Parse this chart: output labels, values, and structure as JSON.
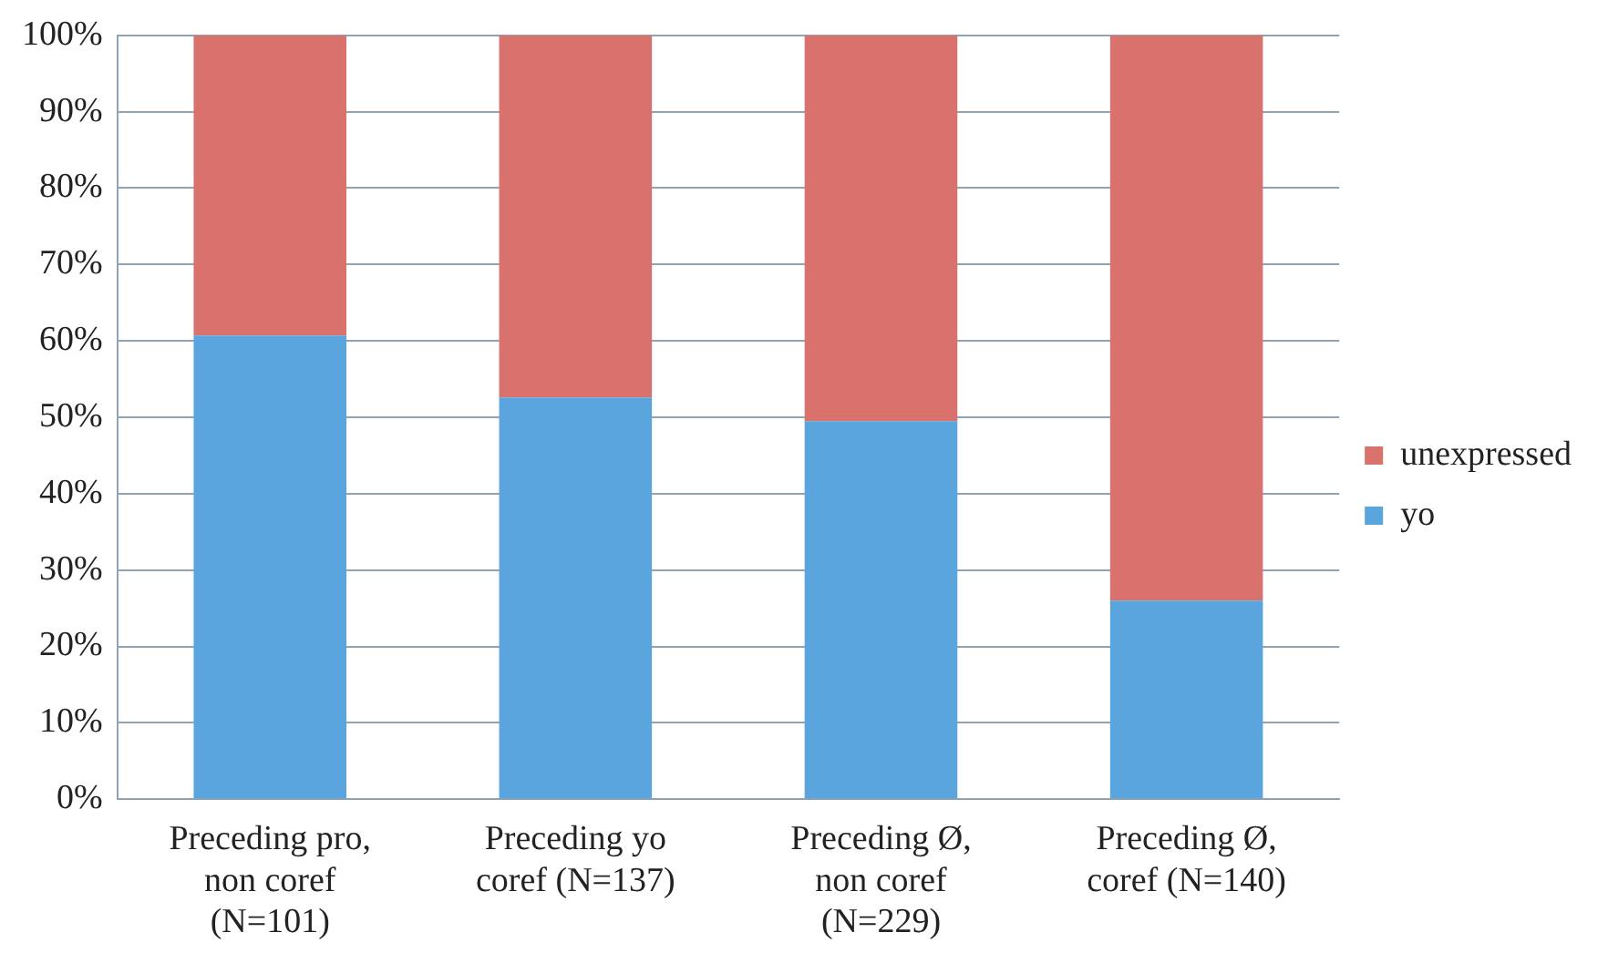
{
  "chart_data": {
    "type": "bar",
    "stacked": true,
    "categories": [
      "Preceding pro,\nnon coref\n(N=101)",
      "Preceding yo\ncoref (N=137)",
      "Preceding Ø,\nnon coref\n(N=229)",
      "Preceding Ø,\ncoref (N=140)"
    ],
    "series": [
      {
        "name": "yo",
        "color": "#5aa5dd",
        "values": [
          60.7,
          52.6,
          49.5,
          26
        ]
      },
      {
        "name": "unexpressed",
        "color": "#d9726c",
        "values": [
          39.3,
          47.4,
          50.5,
          74
        ]
      }
    ],
    "ylim": [
      0,
      100
    ],
    "yticks": [
      {
        "value": 0,
        "label": "0%"
      },
      {
        "value": 10,
        "label": "10%"
      },
      {
        "value": 20,
        "label": "20%"
      },
      {
        "value": 30,
        "label": "30%"
      },
      {
        "value": 40,
        "label": "40%"
      },
      {
        "value": 50,
        "label": "50%"
      },
      {
        "value": 60,
        "label": "60%"
      },
      {
        "value": 70,
        "label": "70%"
      },
      {
        "value": 80,
        "label": "80%"
      },
      {
        "value": 90,
        "label": "90%"
      },
      {
        "value": 100,
        "label": "100%"
      }
    ],
    "grid": "y",
    "legend": "right"
  }
}
